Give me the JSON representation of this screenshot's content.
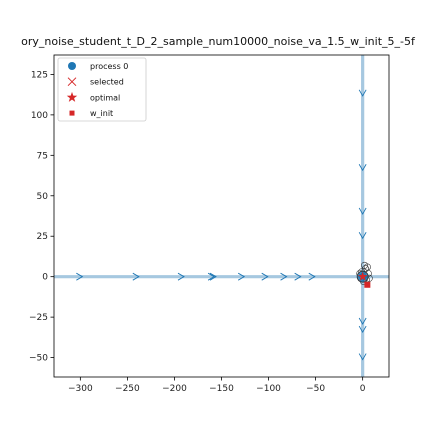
{
  "chart_data": {
    "type": "scatter",
    "title": "ory_noise_student_t_D_2_sample_num10000_noise_va_1.5_w_init_5_-5f",
    "xlabel": "",
    "ylabel": "",
    "xlim": [
      -328,
      28
    ],
    "ylim": [
      -62,
      137
    ],
    "xticks": [
      -300,
      -250,
      -200,
      -150,
      -100,
      -50,
      0
    ],
    "xtick_labels": [
      "−300",
      "−250",
      "−200",
      "−150",
      "−100",
      "−50",
      "0"
    ],
    "yticks": [
      -50,
      -25,
      0,
      25,
      50,
      75,
      100,
      125
    ],
    "ytick_labels": [
      "−50",
      "−25",
      "0",
      "25",
      "50",
      "75",
      "100",
      "125"
    ],
    "grid": false,
    "legend_position": "top-left",
    "legend": [
      {
        "label": "process 0",
        "marker": "circle",
        "color": "#1f77b4"
      },
      {
        "label": "selected",
        "marker": "x",
        "color": "#d62728"
      },
      {
        "label": "optimal",
        "marker": "star",
        "color": "#d62728"
      },
      {
        "label": "w_init",
        "marker": "square",
        "color": "#d62728"
      }
    ],
    "colors": {
      "trajectory": "#a6c8e0",
      "arrows": "#1f77b4",
      "process": "#1f77b4",
      "optimal": "#d62728",
      "w_init": "#d62728"
    },
    "series": [
      {
        "name": "process 0",
        "segments": [
          {
            "x": [
              -328,
              28
            ],
            "y": [
              0,
              0
            ]
          },
          {
            "x": [
              0,
              0
            ],
            "y": [
              -62,
              137
            ]
          }
        ],
        "arrows_h": [
          -300,
          -240,
          -192,
          -160,
          -158,
          -128,
          -103,
          -83,
          -68,
          -53
        ],
        "arrows_v": [
          113,
          67,
          40,
          25,
          -28,
          -33,
          -50
        ],
        "cluster": [
          {
            "x": 0,
            "y": 0
          },
          {
            "x": 2,
            "y": 1
          },
          {
            "x": -2,
            "y": -1
          },
          {
            "x": 3,
            "y": 5
          },
          {
            "x": -1,
            "y": 3
          },
          {
            "x": 4,
            "y": -2
          },
          {
            "x": 1,
            "y": -3
          },
          {
            "x": 6,
            "y": 2
          },
          {
            "x": 5,
            "y": 6
          },
          {
            "x": -3,
            "y": 2
          },
          {
            "x": 2,
            "y": 7
          },
          {
            "x": 7,
            "y": -1
          }
        ]
      }
    ],
    "optimal": {
      "x": 0,
      "y": 0
    },
    "w_init": {
      "x": 5,
      "y": -5
    }
  }
}
